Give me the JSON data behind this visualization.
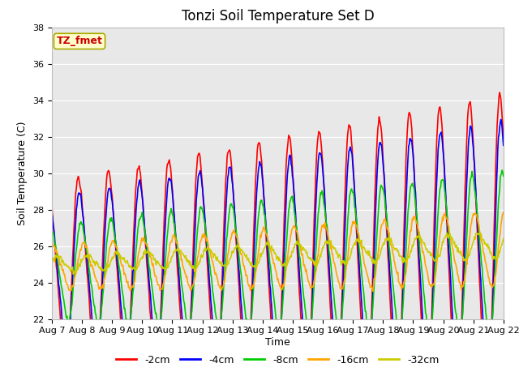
{
  "title": "Tonzi Soil Temperature Set D",
  "xlabel": "Time",
  "ylabel": "Soil Temperature (C)",
  "ylim": [
    22,
    38
  ],
  "series_labels": [
    "-2cm",
    "-4cm",
    "-8cm",
    "-16cm",
    "-32cm"
  ],
  "series_colors": [
    "#FF0000",
    "#0000FF",
    "#00CC00",
    "#FFA500",
    "#CCCC00"
  ],
  "line_widths": [
    1.2,
    1.2,
    1.2,
    1.2,
    1.2
  ],
  "annotation_text": "TZ_fmet",
  "annotation_color": "#CC0000",
  "annotation_bg": "#FFFFCC",
  "background_color": "#E8E8E8",
  "title_fontsize": 12,
  "label_fontsize": 9,
  "tick_fontsize": 8,
  "legend_fontsize": 9,
  "x_tick_labels": [
    "Aug 7",
    "Aug 8",
    "Aug 9",
    "Aug 10",
    "Aug 11",
    "Aug 12",
    "Aug 13",
    "Aug 14",
    "Aug 15",
    "Aug 16",
    "Aug 17",
    "Aug 18",
    "Aug 19",
    "Aug 20",
    "Aug 21",
    "Aug 22"
  ],
  "yticks": [
    22,
    24,
    26,
    28,
    30,
    32,
    34,
    36,
    38
  ]
}
